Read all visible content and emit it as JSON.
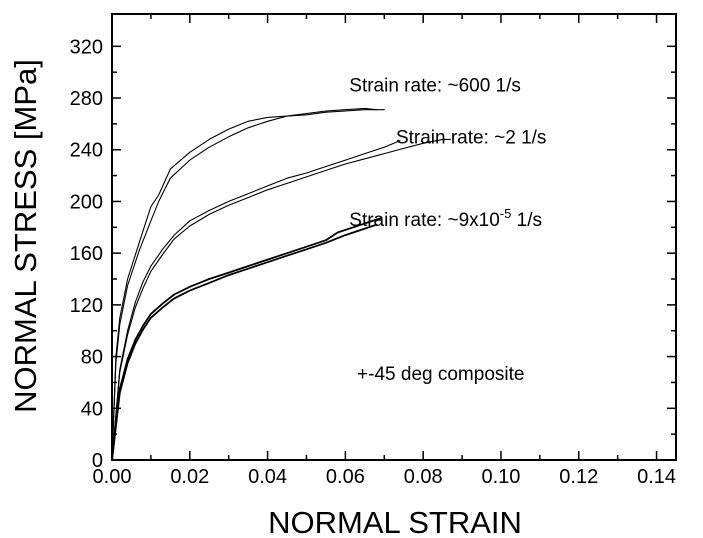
{
  "chart_data": {
    "type": "line",
    "title": "",
    "xlabel": "NORMAL STRAIN",
    "ylabel": "NORMAL STRESS [MPa]",
    "xlim": [
      0,
      0.145
    ],
    "ylim": [
      0,
      345
    ],
    "xticks": [
      0.0,
      0.02,
      0.04,
      0.06,
      0.08,
      0.1,
      0.12,
      0.14
    ],
    "xtick_labels": [
      "0.00",
      "0.02",
      "0.04",
      "0.06",
      "0.08",
      "0.10",
      "0.12",
      "0.14"
    ],
    "yticks": [
      0,
      40,
      80,
      120,
      160,
      200,
      240,
      280,
      320
    ],
    "ytick_labels": [
      "0",
      "40",
      "80",
      "120",
      "160",
      "200",
      "240",
      "280",
      "320"
    ],
    "grid": false,
    "series": [
      {
        "points": [
          [
            0,
            0
          ],
          [
            0.001,
            80
          ],
          [
            0.002,
            110
          ],
          [
            0.004,
            140
          ],
          [
            0.007,
            168
          ],
          [
            0.01,
            196
          ],
          [
            0.012,
            205
          ],
          [
            0.015,
            225
          ],
          [
            0.02,
            238
          ],
          [
            0.025,
            248
          ],
          [
            0.03,
            256
          ],
          [
            0.035,
            262
          ],
          [
            0.04,
            265
          ],
          [
            0.045,
            266
          ],
          [
            0.05,
            267
          ],
          [
            0.055,
            269
          ],
          [
            0.06,
            270
          ],
          [
            0.065,
            271
          ],
          [
            0.07,
            271
          ]
        ]
      },
      {
        "points": [
          [
            0,
            0
          ],
          [
            0.001,
            75
          ],
          [
            0.002,
            105
          ],
          [
            0.004,
            135
          ],
          [
            0.007,
            162
          ],
          [
            0.01,
            185
          ],
          [
            0.012,
            200
          ],
          [
            0.015,
            218
          ],
          [
            0.02,
            232
          ],
          [
            0.025,
            242
          ],
          [
            0.03,
            250
          ],
          [
            0.035,
            257
          ],
          [
            0.04,
            262
          ],
          [
            0.045,
            266
          ],
          [
            0.05,
            268
          ],
          [
            0.055,
            270
          ],
          [
            0.06,
            271
          ],
          [
            0.065,
            272
          ],
          [
            0.068,
            271
          ]
        ]
      },
      {
        "points": [
          [
            0,
            0
          ],
          [
            0.002,
            70
          ],
          [
            0.004,
            100
          ],
          [
            0.006,
            122
          ],
          [
            0.008,
            138
          ],
          [
            0.01,
            150
          ],
          [
            0.013,
            163
          ],
          [
            0.016,
            174
          ],
          [
            0.02,
            185
          ],
          [
            0.025,
            193
          ],
          [
            0.03,
            200
          ],
          [
            0.035,
            206
          ],
          [
            0.04,
            212
          ],
          [
            0.045,
            218
          ],
          [
            0.05,
            222
          ],
          [
            0.055,
            227
          ],
          [
            0.06,
            232
          ],
          [
            0.065,
            237
          ],
          [
            0.07,
            242
          ],
          [
            0.074,
            247
          ]
        ]
      },
      {
        "points": [
          [
            0,
            0
          ],
          [
            0.002,
            68
          ],
          [
            0.004,
            97
          ],
          [
            0.006,
            118
          ],
          [
            0.008,
            133
          ],
          [
            0.01,
            146
          ],
          [
            0.013,
            159
          ],
          [
            0.016,
            171
          ],
          [
            0.02,
            181
          ],
          [
            0.025,
            190
          ],
          [
            0.03,
            197
          ],
          [
            0.035,
            203
          ],
          [
            0.04,
            209
          ],
          [
            0.045,
            214
          ],
          [
            0.05,
            219
          ],
          [
            0.055,
            224
          ],
          [
            0.06,
            229
          ],
          [
            0.065,
            233
          ],
          [
            0.07,
            237
          ],
          [
            0.075,
            241
          ],
          [
            0.08,
            245
          ],
          [
            0.085,
            248
          ],
          [
            0.087,
            248
          ]
        ]
      },
      {
        "points": [
          [
            0,
            0
          ],
          [
            0.002,
            55
          ],
          [
            0.004,
            78
          ],
          [
            0.006,
            93
          ],
          [
            0.008,
            104
          ],
          [
            0.01,
            113
          ],
          [
            0.013,
            121
          ],
          [
            0.016,
            128
          ],
          [
            0.02,
            134
          ],
          [
            0.025,
            140
          ],
          [
            0.03,
            145
          ],
          [
            0.035,
            150
          ],
          [
            0.04,
            155
          ],
          [
            0.045,
            160
          ],
          [
            0.05,
            165
          ],
          [
            0.055,
            170
          ],
          [
            0.058,
            176
          ],
          [
            0.062,
            180
          ],
          [
            0.066,
            184
          ],
          [
            0.069,
            187
          ]
        ]
      },
      {
        "points": [
          [
            0,
            0
          ],
          [
            0.002,
            52
          ],
          [
            0.004,
            75
          ],
          [
            0.006,
            90
          ],
          [
            0.008,
            101
          ],
          [
            0.01,
            110
          ],
          [
            0.013,
            118
          ],
          [
            0.016,
            125
          ],
          [
            0.02,
            131
          ],
          [
            0.025,
            137
          ],
          [
            0.03,
            143
          ],
          [
            0.035,
            148
          ],
          [
            0.04,
            153
          ],
          [
            0.045,
            158
          ],
          [
            0.05,
            163
          ],
          [
            0.055,
            168
          ],
          [
            0.06,
            174
          ],
          [
            0.065,
            179
          ],
          [
            0.068,
            182
          ]
        ]
      }
    ],
    "annotations": [
      {
        "text": "Strain rate: ~600 1/s",
        "at": [
          0.061,
          285
        ]
      },
      {
        "text": "Strain rate: ~2 1/s",
        "at": [
          0.073,
          245
        ]
      },
      {
        "text": "Strain rate: ~9x10",
        "sup": "-5",
        "suffix": " 1/s",
        "at": [
          0.061,
          181
        ]
      },
      {
        "text": "+-45 deg composite",
        "at": [
          0.063,
          62
        ]
      }
    ]
  }
}
